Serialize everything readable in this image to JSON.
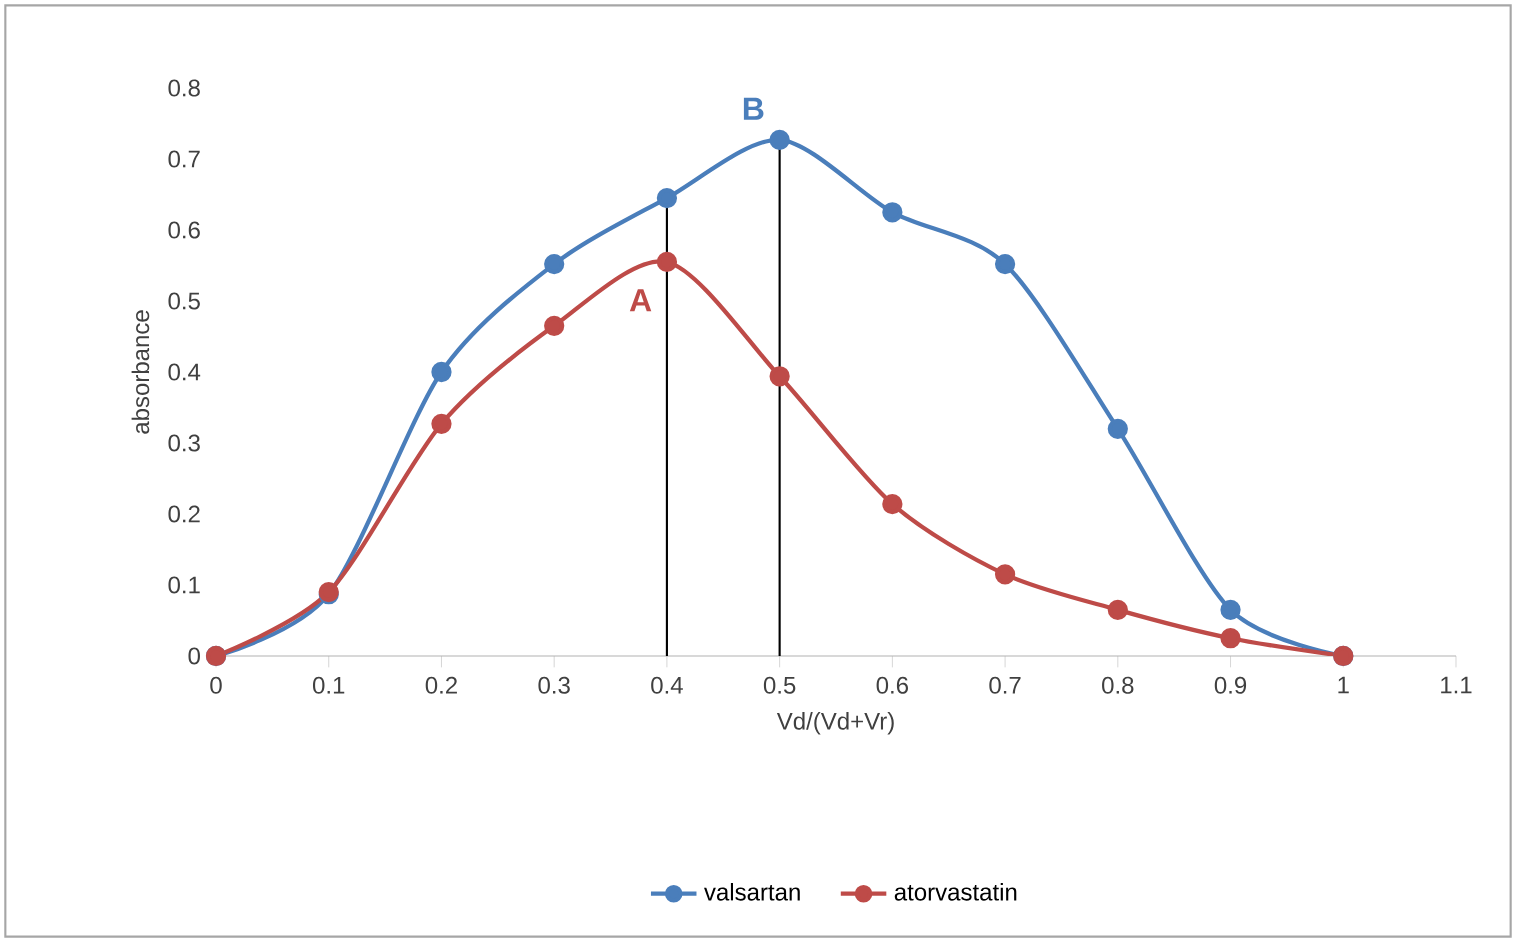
{
  "chart_data": {
    "type": "line",
    "xlabel": "Vd/(Vd+Vr)",
    "ylabel": "absorbance",
    "x": [
      0,
      0.1,
      0.2,
      0.3,
      0.4,
      0.5,
      0.6,
      0.7,
      0.8,
      0.9,
      1
    ],
    "series": [
      {
        "name": "valsartan",
        "color": "#4a7ebb",
        "values": [
          0,
          0.087,
          0.4,
          0.552,
          0.645,
          0.727,
          0.625,
          0.552,
          0.32,
          0.065,
          0
        ]
      },
      {
        "name": "atorvastatin",
        "color": "#be4b48",
        "values": [
          0,
          0.09,
          0.327,
          0.465,
          0.555,
          0.394,
          0.214,
          0.115,
          0.065,
          0.025,
          0
        ]
      }
    ],
    "xlim": [
      0,
      1.1
    ],
    "xticks": [
      0,
      0.1,
      0.2,
      0.3,
      0.4,
      0.5,
      0.6,
      0.7,
      0.8,
      0.9,
      1,
      1.1
    ],
    "ylim": [
      0,
      0.8
    ],
    "yticks": [
      0,
      0.1,
      0.2,
      0.3,
      0.4,
      0.5,
      0.6,
      0.7,
      0.8
    ],
    "ref_lines": [
      {
        "axis": "x",
        "value": 0.4,
        "color": "#000000"
      },
      {
        "axis": "x",
        "value": 0.5,
        "color": "#000000"
      }
    ],
    "annotations": [
      "A",
      "B"
    ],
    "grid": false,
    "legend": "bottom",
    "marker": "circle",
    "line_style": "solid"
  }
}
